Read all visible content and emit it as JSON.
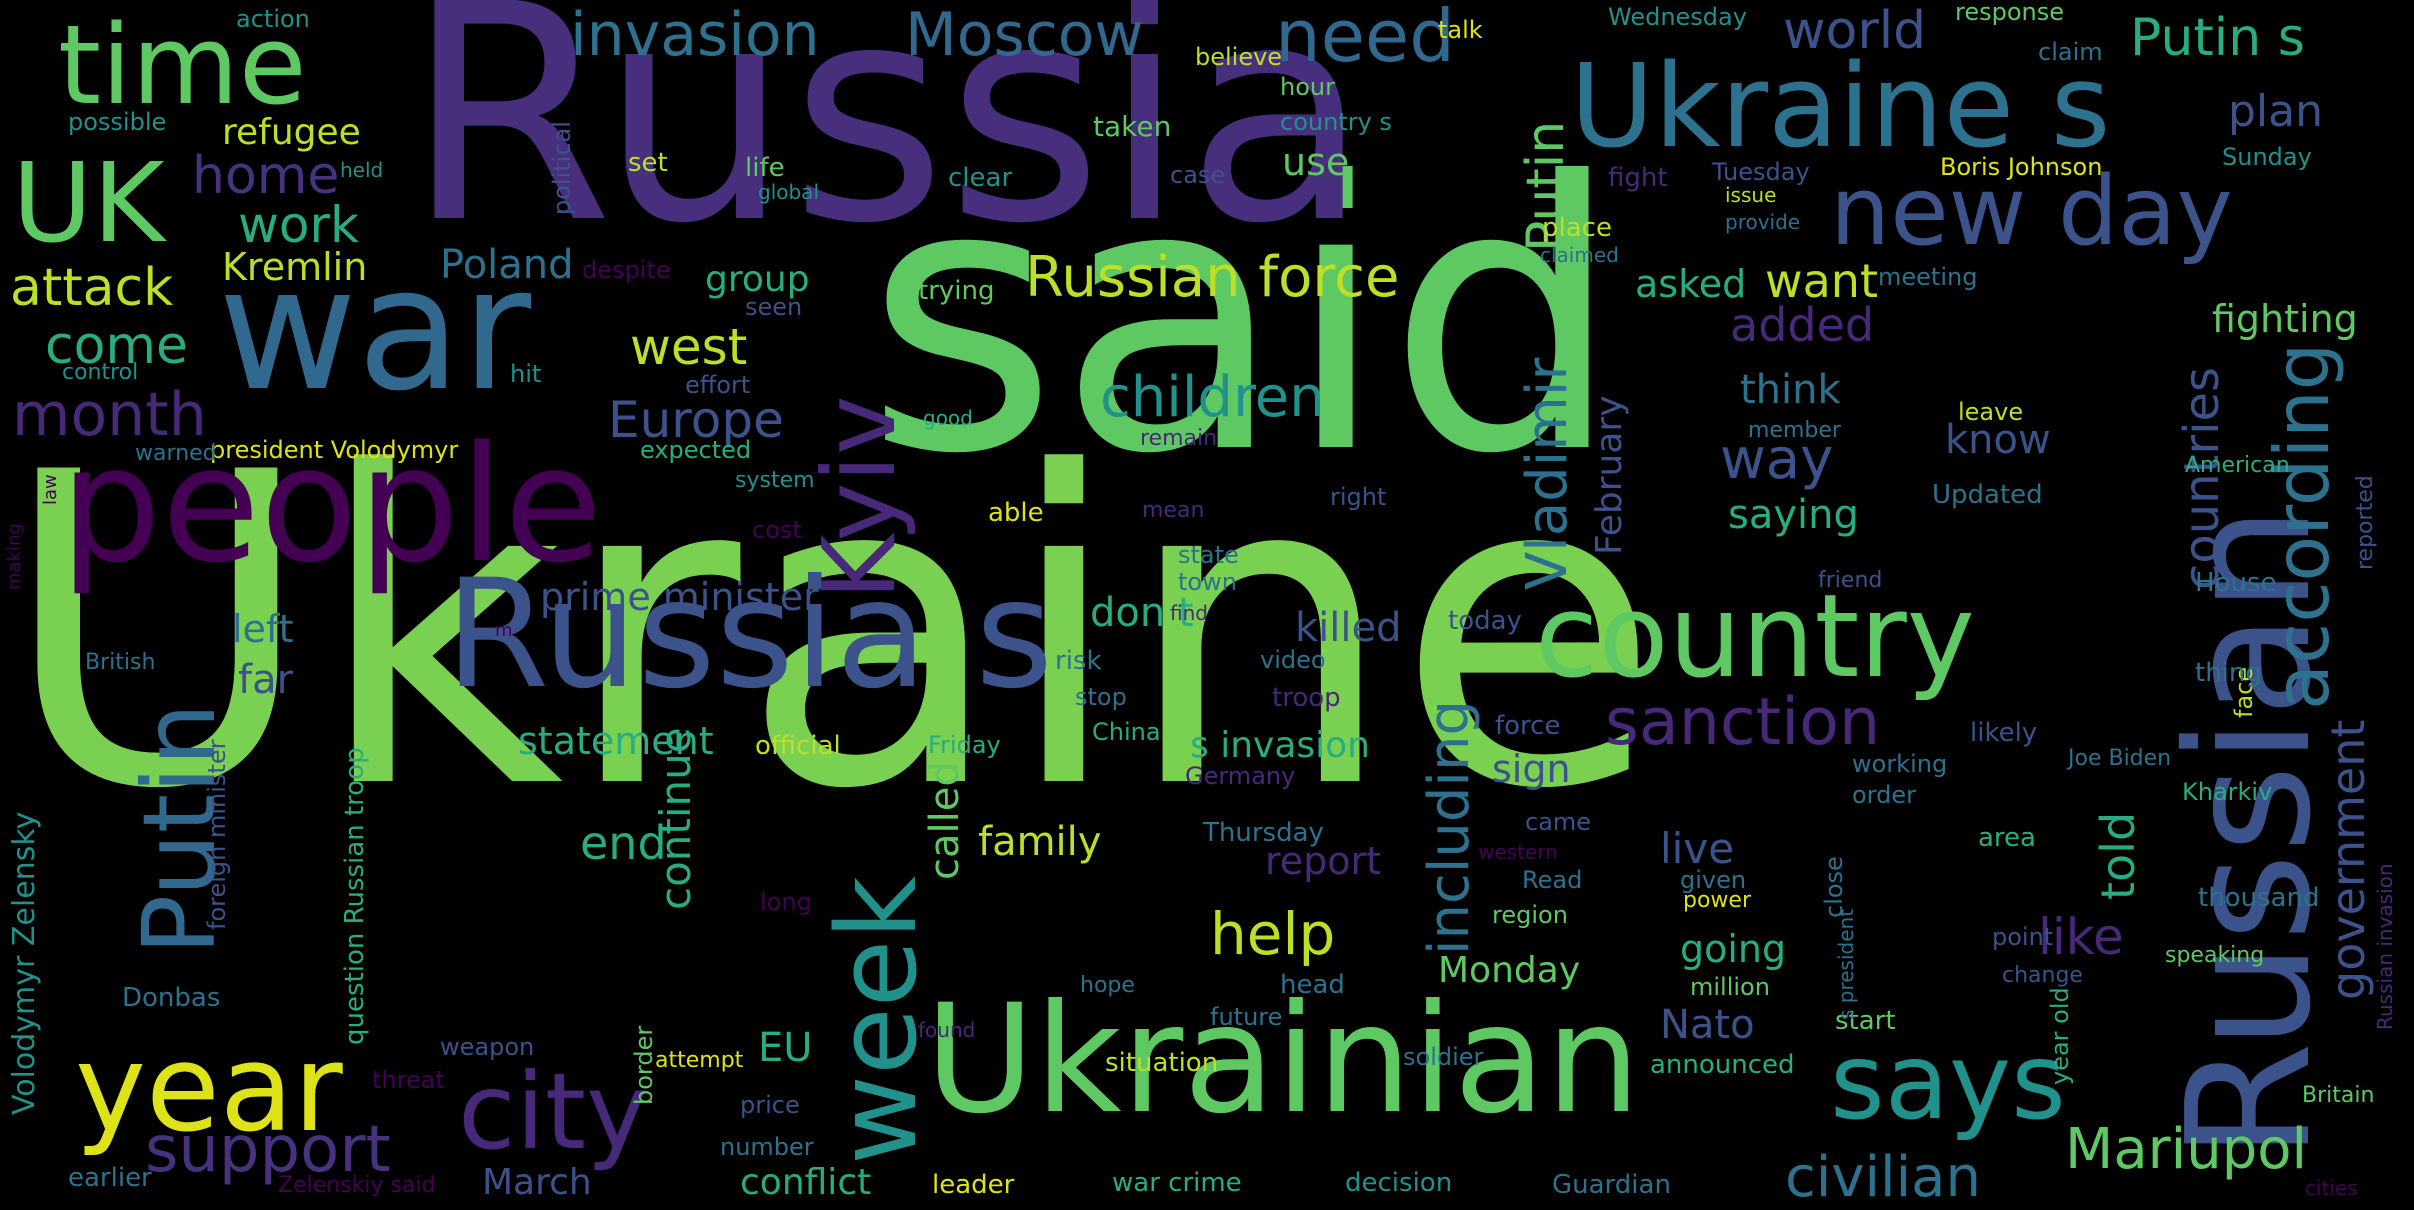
{
  "colors": {
    "background": "#000000",
    "palette": [
      "#440154",
      "#46307e",
      "#3b518b",
      "#2c718e",
      "#21908d",
      "#27ad81",
      "#5cc863",
      "#aadc32",
      "#fde725"
    ]
  },
  "words": [
    {
      "text": "Ukraine",
      "color": "#7ad151"
    },
    {
      "text": "said",
      "color": "#5ec962"
    },
    {
      "text": "Russia",
      "color": "#472f7d"
    },
    {
      "text": "war",
      "color": "#31688e"
    },
    {
      "text": "people",
      "color": "#440154"
    },
    {
      "text": "Ukrainian",
      "color": "#5ec962"
    },
    {
      "text": "Russian",
      "color": "#3b528b"
    },
    {
      "text": "Russia s",
      "color": "#3b528b"
    },
    {
      "text": "Ukraine s",
      "color": "#2c728e"
    },
    {
      "text": "country",
      "color": "#5ec962"
    },
    {
      "text": "time",
      "color": "#5ec962"
    },
    {
      "text": "UK",
      "color": "#5ec962"
    },
    {
      "text": "new",
      "color": "#3b528b"
    },
    {
      "text": "day",
      "color": "#3b528b"
    },
    {
      "text": "year",
      "color": "#dde318"
    },
    {
      "text": "week",
      "color": "#21918c"
    },
    {
      "text": "Kyiv",
      "color": "#482878"
    },
    {
      "text": "city",
      "color": "#482878"
    },
    {
      "text": "Putin",
      "color": "#31688e"
    },
    {
      "text": "says",
      "color": "#21918c"
    },
    {
      "text": "invasion",
      "color": "#2c728e"
    },
    {
      "text": "Moscow",
      "color": "#31688e"
    },
    {
      "text": "need",
      "color": "#31688e"
    },
    {
      "text": "Putin s",
      "color": "#27ad81"
    },
    {
      "text": "world",
      "color": "#3b528b"
    },
    {
      "text": "plan",
      "color": "#3b528b"
    },
    {
      "text": "Russian force",
      "color": "#bddf26"
    },
    {
      "text": "sanction",
      "color": "#482878"
    },
    {
      "text": "government",
      "color": "#3b528b"
    },
    {
      "text": "according",
      "color": "#2c728e"
    },
    {
      "text": "Mariupol",
      "color": "#5ec962"
    },
    {
      "text": "support",
      "color": "#46327e"
    },
    {
      "text": "children",
      "color": "#21918c"
    },
    {
      "text": "Vladimir",
      "color": "#2c728e"
    },
    {
      "text": "countries",
      "color": "#3b528b"
    },
    {
      "text": "civilian",
      "color": "#2c728e"
    },
    {
      "text": "help",
      "color": "#bddf26"
    },
    {
      "text": "Europe",
      "color": "#3b528b"
    },
    {
      "text": "including",
      "color": "#2c728e"
    },
    {
      "text": "month",
      "color": "#482878"
    },
    {
      "text": "attack",
      "color": "#bddf26"
    },
    {
      "text": "come",
      "color": "#27ad81"
    },
    {
      "text": "home",
      "color": "#46327e"
    },
    {
      "text": "work",
      "color": "#27ad81"
    },
    {
      "text": "refugee",
      "color": "#bddf26"
    },
    {
      "text": "Kremlin",
      "color": "#bddf26"
    },
    {
      "text": "Poland",
      "color": "#2c728e"
    },
    {
      "text": "west",
      "color": "#bddf26"
    },
    {
      "text": "added",
      "color": "#482878"
    },
    {
      "text": "want",
      "color": "#bddf26"
    },
    {
      "text": "way",
      "color": "#3b528b"
    },
    {
      "text": "group",
      "color": "#27ad81"
    },
    {
      "text": "asked",
      "color": "#27ad81"
    },
    {
      "text": "fighting",
      "color": "#5ec962"
    },
    {
      "text": "know",
      "color": "#3b528b"
    },
    {
      "text": "think",
      "color": "#2c728e"
    },
    {
      "text": "saying",
      "color": "#27ad81"
    },
    {
      "text": "February",
      "color": "#3b528b"
    },
    {
      "text": "told",
      "color": "#27ad81"
    },
    {
      "text": "like",
      "color": "#482878"
    },
    {
      "text": "Putin",
      "color": "#5ec962"
    },
    {
      "text": "prime minister",
      "color": "#3b528b"
    },
    {
      "text": "left",
      "color": "#2c728e"
    },
    {
      "text": "far",
      "color": "#3b528b"
    },
    {
      "text": "killed",
      "color": "#3b528b"
    },
    {
      "text": "don t",
      "color": "#27ad81"
    },
    {
      "text": "s invasion",
      "color": "#27ad81"
    },
    {
      "text": "statement",
      "color": "#27ad81"
    },
    {
      "text": "end",
      "color": "#27ad81"
    },
    {
      "text": "continue",
      "color": "#27ad81"
    },
    {
      "text": "family",
      "color": "#bddf26"
    },
    {
      "text": "called",
      "color": "#5ec962"
    },
    {
      "text": "report",
      "color": "#482878"
    },
    {
      "text": "live",
      "color": "#3b528b"
    },
    {
      "text": "going",
      "color": "#27ad81"
    },
    {
      "text": "Nato",
      "color": "#3b528b"
    },
    {
      "text": "Monday",
      "color": "#5ec962"
    },
    {
      "text": "EU",
      "color": "#27ad81"
    },
    {
      "text": "March",
      "color": "#3b528b"
    },
    {
      "text": "conflict",
      "color": "#27ad81"
    },
    {
      "text": "Volodymyr Zelensky",
      "color": "#21918c"
    },
    {
      "text": "control",
      "color": "#21918c"
    },
    {
      "text": "president Volodymyr",
      "color": "#dde318"
    },
    {
      "text": "warned",
      "color": "#2c728e"
    },
    {
      "text": "law",
      "color": "#440154"
    },
    {
      "text": "making",
      "color": "#440154"
    },
    {
      "text": "action",
      "color": "#21918c"
    },
    {
      "text": "possible",
      "color": "#21918c"
    },
    {
      "text": "held",
      "color": "#21918c"
    },
    {
      "text": "political",
      "color": "#3b528b"
    },
    {
      "text": "set",
      "color": "#bddf26"
    },
    {
      "text": "life",
      "color": "#5ec962"
    },
    {
      "text": "global",
      "color": "#21918c"
    },
    {
      "text": "believe",
      "color": "#bddf26"
    },
    {
      "text": "taken",
      "color": "#5ec962"
    },
    {
      "text": "talk",
      "color": "#dde318"
    },
    {
      "text": "hour",
      "color": "#5ec962"
    },
    {
      "text": "country s",
      "color": "#21918c"
    },
    {
      "text": "use",
      "color": "#5ec962"
    },
    {
      "text": "case",
      "color": "#3b528b"
    },
    {
      "text": "clear",
      "color": "#21918c"
    },
    {
      "text": "Wednesday",
      "color": "#21918c"
    },
    {
      "text": "response",
      "color": "#5ec962"
    },
    {
      "text": "claim",
      "color": "#2c728e"
    },
    {
      "text": "Tuesday",
      "color": "#3b528b"
    },
    {
      "text": "Boris Johnson",
      "color": "#dde318"
    },
    {
      "text": "Sunday",
      "color": "#21918c"
    },
    {
      "text": "fight",
      "color": "#482878"
    },
    {
      "text": "issue",
      "color": "#bddf26"
    },
    {
      "text": "provide",
      "color": "#2c728e"
    },
    {
      "text": "place",
      "color": "#bddf26"
    },
    {
      "text": "claimed",
      "color": "#2c728e"
    },
    {
      "text": "meeting",
      "color": "#2c728e"
    },
    {
      "text": "despite",
      "color": "#440154"
    },
    {
      "text": "seen",
      "color": "#3b528b"
    },
    {
      "text": "trying",
      "color": "#5ec962"
    },
    {
      "text": "effort",
      "color": "#3b528b"
    },
    {
      "text": "hit",
      "color": "#21918c"
    },
    {
      "text": "expected",
      "color": "#27ad81"
    },
    {
      "text": "good",
      "color": "#27ad81"
    },
    {
      "text": "system",
      "color": "#21918c"
    },
    {
      "text": "remain",
      "color": "#482878"
    },
    {
      "text": "cost",
      "color": "#440154"
    },
    {
      "text": "able",
      "color": "#dde318"
    },
    {
      "text": "mean",
      "color": "#482878"
    },
    {
      "text": "right",
      "color": "#3b528b"
    },
    {
      "text": "state",
      "color": "#2c728e"
    },
    {
      "text": "town",
      "color": "#2c728e"
    },
    {
      "text": "find",
      "color": "#482878"
    },
    {
      "text": "m",
      "color": "#440154"
    },
    {
      "text": "today",
      "color": "#3b528b"
    },
    {
      "text": "video",
      "color": "#2c728e"
    },
    {
      "text": "risk",
      "color": "#2c728e"
    },
    {
      "text": "stop",
      "color": "#2c728e"
    },
    {
      "text": "troop",
      "color": "#482878"
    },
    {
      "text": "force",
      "color": "#3b528b"
    },
    {
      "text": "China",
      "color": "#27ad81"
    },
    {
      "text": "official",
      "color": "#bddf26"
    },
    {
      "text": "Friday",
      "color": "#27ad81"
    },
    {
      "text": "Germany",
      "color": "#482878"
    },
    {
      "text": "sign",
      "color": "#3b528b"
    },
    {
      "text": "came",
      "color": "#3b528b"
    },
    {
      "text": "western",
      "color": "#440154"
    },
    {
      "text": "Read",
      "color": "#2c728e"
    },
    {
      "text": "region",
      "color": "#5ec962"
    },
    {
      "text": "Thursday",
      "color": "#2c728e"
    },
    {
      "text": "long",
      "color": "#440154"
    },
    {
      "text": "given",
      "color": "#2c728e"
    },
    {
      "text": "power",
      "color": "#dde318"
    },
    {
      "text": "British",
      "color": "#2c728e"
    },
    {
      "text": "foreign minister",
      "color": "#3b528b"
    },
    {
      "text": "question Russian troop",
      "color": "#27ad81"
    },
    {
      "text": "Donbas",
      "color": "#2c728e"
    },
    {
      "text": "weapon",
      "color": "#3b528b"
    },
    {
      "text": "threat",
      "color": "#440154"
    },
    {
      "text": "border",
      "color": "#5ec962"
    },
    {
      "text": "hope",
      "color": "#2c728e"
    },
    {
      "text": "found",
      "color": "#482878"
    },
    {
      "text": "attempt",
      "color": "#dde318"
    },
    {
      "text": "price",
      "color": "#3b528b"
    },
    {
      "text": "number",
      "color": "#2c728e"
    },
    {
      "text": "earlier",
      "color": "#2c728e"
    },
    {
      "text": "Zelenskiy said",
      "color": "#440154"
    },
    {
      "text": "leader",
      "color": "#dde318"
    },
    {
      "text": "war crime",
      "color": "#27ad81"
    },
    {
      "text": "decision",
      "color": "#21918c"
    },
    {
      "text": "Guardian",
      "color": "#2c728e"
    },
    {
      "text": "situation",
      "color": "#bddf26"
    },
    {
      "text": "soldier",
      "color": "#2c728e"
    },
    {
      "text": "future",
      "color": "#2c728e"
    },
    {
      "text": "head",
      "color": "#2c728e"
    },
    {
      "text": "million",
      "color": "#5ec962"
    },
    {
      "text": "announced",
      "color": "#27ad81"
    },
    {
      "text": "year old",
      "color": "#27ad81"
    },
    {
      "text": "start",
      "color": "#5ec962"
    },
    {
      "text": "close",
      "color": "#2c728e"
    },
    {
      "text": "s president",
      "color": "#2c728e"
    },
    {
      "text": "area",
      "color": "#27ad81"
    },
    {
      "text": "likely",
      "color": "#3b528b"
    },
    {
      "text": "working",
      "color": "#2c728e"
    },
    {
      "text": "order",
      "color": "#2c728e"
    },
    {
      "text": "Kharkiv",
      "color": "#27ad81"
    },
    {
      "text": "Joe Biden",
      "color": "#2c728e"
    },
    {
      "text": "face",
      "color": "#bddf26"
    },
    {
      "text": "thing",
      "color": "#2c728e"
    },
    {
      "text": "House",
      "color": "#2c728e"
    },
    {
      "text": "friend",
      "color": "#3b528b"
    },
    {
      "text": "reported",
      "color": "#3b528b"
    },
    {
      "text": "American",
      "color": "#27ad81"
    },
    {
      "text": "leave",
      "color": "#bddf26"
    },
    {
      "text": "member",
      "color": "#2c728e"
    },
    {
      "text": "Updated",
      "color": "#2c728e"
    },
    {
      "text": "thousand",
      "color": "#2c728e"
    },
    {
      "text": "point",
      "color": "#3b528b"
    },
    {
      "text": "change",
      "color": "#3b528b"
    },
    {
      "text": "speaking",
      "color": "#5ec962"
    },
    {
      "text": "Russian invasion",
      "color": "#482878"
    },
    {
      "text": "Britain",
      "color": "#5ec962"
    },
    {
      "text": "cities",
      "color": "#440154"
    }
  ]
}
